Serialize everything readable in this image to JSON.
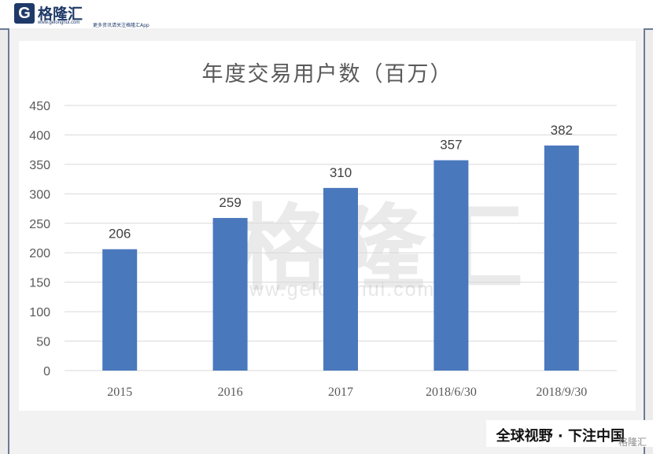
{
  "header": {
    "logo_letter": "G",
    "logo_name": "格隆汇",
    "logo_domain": "www.gelonghui.com",
    "slogan": "更多资讯请关注格隆汇App"
  },
  "watermark": {
    "text": "格隆汇",
    "url": "www.gelonghui.com"
  },
  "footer": {
    "banner": "全球视野 · 下注中国",
    "corner_mark": "格隆汇"
  },
  "chart_data": {
    "type": "bar",
    "title": "年度交易用户数（百万）",
    "xlabel": "",
    "ylabel": "",
    "categories": [
      "2015",
      "2016",
      "2017",
      "2018/6/30",
      "2018/9/30"
    ],
    "values": [
      206,
      259,
      310,
      357,
      382
    ],
    "ylim": [
      0,
      450
    ],
    "yticks": [
      0,
      50,
      100,
      150,
      200,
      250,
      300,
      350,
      400,
      450
    ],
    "grid": true,
    "legend": "none",
    "colors": {
      "bar": "#4a78bd",
      "grid": "#d9d9d9",
      "axis_text": "#595959",
      "label_text": "#404040"
    }
  }
}
